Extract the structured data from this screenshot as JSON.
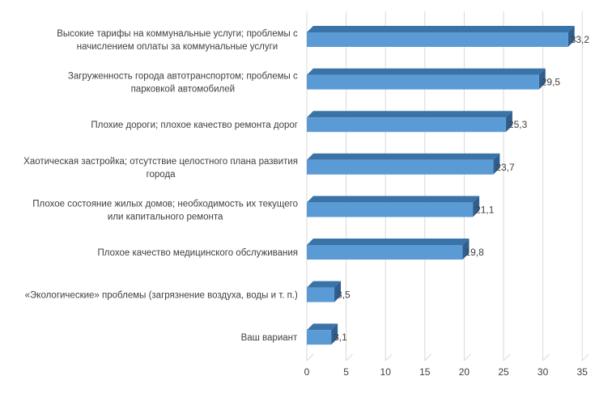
{
  "chart_data": {
    "type": "bar",
    "orientation": "horizontal",
    "style": "3d",
    "categories": [
      [
        "Высокие тарифы на коммунальные услуги; проблемы с",
        "начислением оплаты за коммунальные услуги"
      ],
      [
        "Загруженность города автотранспортом; проблемы с",
        "парковкой автомобилей"
      ],
      [
        "Плохие дороги; плохое качество ремонта дорог"
      ],
      [
        "Хаотическая застройка; отсутствие целостного плана развития",
        "города"
      ],
      [
        "Плохое состояние жилых домов; необходимость их текущего",
        "или капитального ремонта"
      ],
      [
        "Плохое качество медицинского обслуживания"
      ],
      [
        "«Экологические» проблемы (загрязнение воздуха, воды и т. п.)"
      ],
      [
        "Ваш вариант"
      ]
    ],
    "values": [
      33.2,
      29.5,
      25.3,
      23.7,
      21.1,
      19.8,
      3.5,
      3.1
    ],
    "value_labels": [
      "33,2",
      "29,5",
      "25,3",
      "23,7",
      "21,1",
      "19,8",
      "3,5",
      "3,1"
    ],
    "xlim": [
      0,
      35
    ],
    "xticks": [
      0,
      5,
      10,
      15,
      20,
      25,
      30,
      35
    ],
    "grid": true,
    "legend": "none",
    "title": "",
    "xlabel": "",
    "ylabel": "",
    "colors": {
      "bar_front": "#5b9bd5",
      "bar_top": "#3a73a8",
      "bar_side": "#2e5f8f",
      "grid": "#d9d9d9",
      "text": "#404040"
    }
  }
}
